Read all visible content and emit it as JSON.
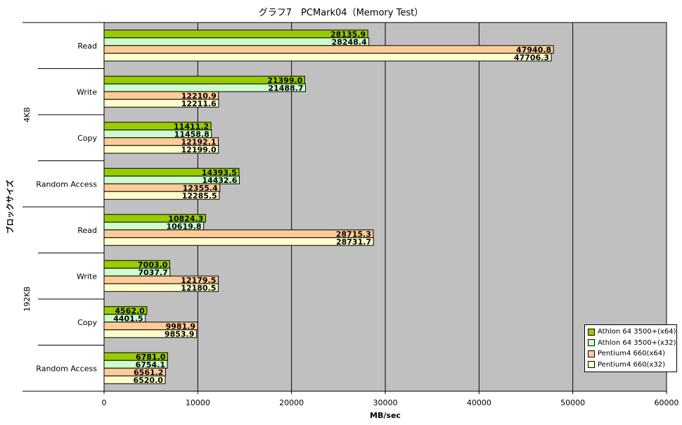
{
  "chart_data": {
    "type": "bar",
    "orientation": "horizontal",
    "title": "グラフ7　PCMark04（Memory Test）",
    "xlabel": "MB/sec",
    "ylabel": "ブロックサイズ",
    "xlim": [
      0,
      60000
    ],
    "x_ticks": [
      "0",
      "10000",
      "20000",
      "30000",
      "40000",
      "50000",
      "60000"
    ],
    "grid": true,
    "legend_position": "bottom-right",
    "groups": [
      {
        "name": "4KB",
        "categories": [
          "Read",
          "Write",
          "Copy",
          "Random Access"
        ]
      },
      {
        "name": "192KB",
        "categories": [
          "Read",
          "Write",
          "Copy",
          "Random Access"
        ]
      }
    ],
    "series": [
      {
        "name": "Athlon 64 3500+(x64)",
        "color": "#99cc00",
        "values": [
          28135.9,
          21399.0,
          11411.2,
          14393.5,
          10824.3,
          7003.0,
          4562.0,
          6781.0
        ],
        "labels": [
          "28135.9",
          "21399.0",
          "11411.2",
          "14393.5",
          "10824.3",
          "7003.0",
          "4562.0",
          "6781.0"
        ]
      },
      {
        "name": "Athlon 64 3500+(x32)",
        "color": "#ccffcc",
        "values": [
          28248.4,
          21488.7,
          11458.8,
          14432.6,
          10619.8,
          7037.7,
          4401.5,
          6754.1
        ],
        "labels": [
          "28248.4",
          "21488.7",
          "11458.8",
          "14432.6",
          "10619.8",
          "7037.7",
          "4401.5",
          "6754.1"
        ]
      },
      {
        "name": "Pentium4 660(x64)",
        "color": "#ffcc99",
        "values": [
          47940.8,
          12210.9,
          12192.1,
          12355.4,
          28715.3,
          12179.5,
          9981.9,
          6561.2
        ],
        "labels": [
          "47940.8",
          "12210.9",
          "12192.1",
          "12355.4",
          "28715.3",
          "12179.5",
          "9981.9",
          "6561.2"
        ]
      },
      {
        "name": "Pentium4 660(x32)",
        "color": "#ffffcc",
        "values": [
          47706.3,
          12211.6,
          12199.0,
          12285.5,
          28731.7,
          12180.5,
          9853.9,
          6520.0
        ],
        "labels": [
          "47706.3",
          "12211.6",
          "12199.0",
          "12285.5",
          "28731.7",
          "12180.5",
          "9853.9",
          "6520.0"
        ]
      }
    ],
    "colors": {
      "plot_background": "#c0c0c0",
      "gridline": "#000000"
    }
  }
}
